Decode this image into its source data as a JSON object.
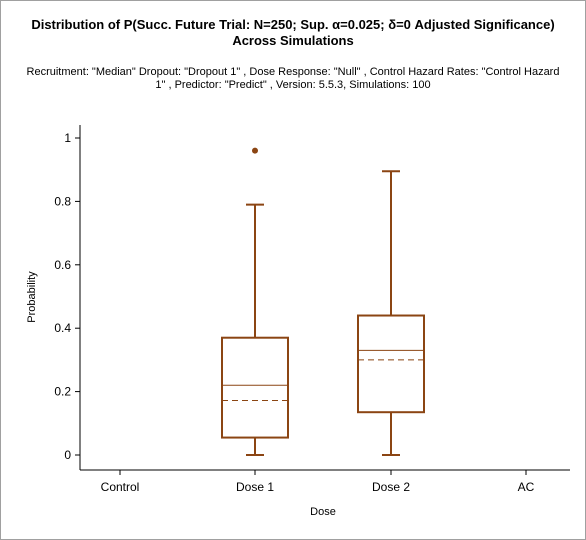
{
  "title_line1": "Distribution of P(Succ. Future Trial: N=250; Sup. α=0.025; δ=0 Adjusted Significance)",
  "title_line2": "Across Simulations",
  "subtitle_line1": "Recruitment: \"Median\" Dropout: \"Dropout 1\" , Dose Response: \"Null\" , Control Hazard Rates: \"Control Hazard",
  "subtitle_line2": "1\" , Predictor: \"Predict\" , Version: 5.5.3, Simulations: 100",
  "chart_data": {
    "type": "box",
    "xlabel": "Dose",
    "ylabel": "Probability",
    "ylim": [
      0,
      1
    ],
    "yticks": [
      0,
      0.2,
      0.4,
      0.6,
      0.8,
      1
    ],
    "ytick_labels": [
      "0",
      "0.2",
      "0.4",
      "0.6",
      "0.8",
      "1"
    ],
    "categories": [
      "Control",
      "Dose 1",
      "Dose 2",
      "AC"
    ],
    "color": "#8b4513",
    "boxes": [
      {
        "category": "Dose 1",
        "whisker_low": 0,
        "q1": 0.055,
        "median": 0.22,
        "mean": 0.172,
        "q3": 0.37,
        "whisker_high": 0.79,
        "outliers": [
          0.96
        ]
      },
      {
        "category": "Dose 2",
        "whisker_low": 0,
        "q1": 0.135,
        "median": 0.33,
        "mean": 0.3,
        "q3": 0.44,
        "whisker_high": 0.895,
        "outliers": []
      }
    ]
  }
}
